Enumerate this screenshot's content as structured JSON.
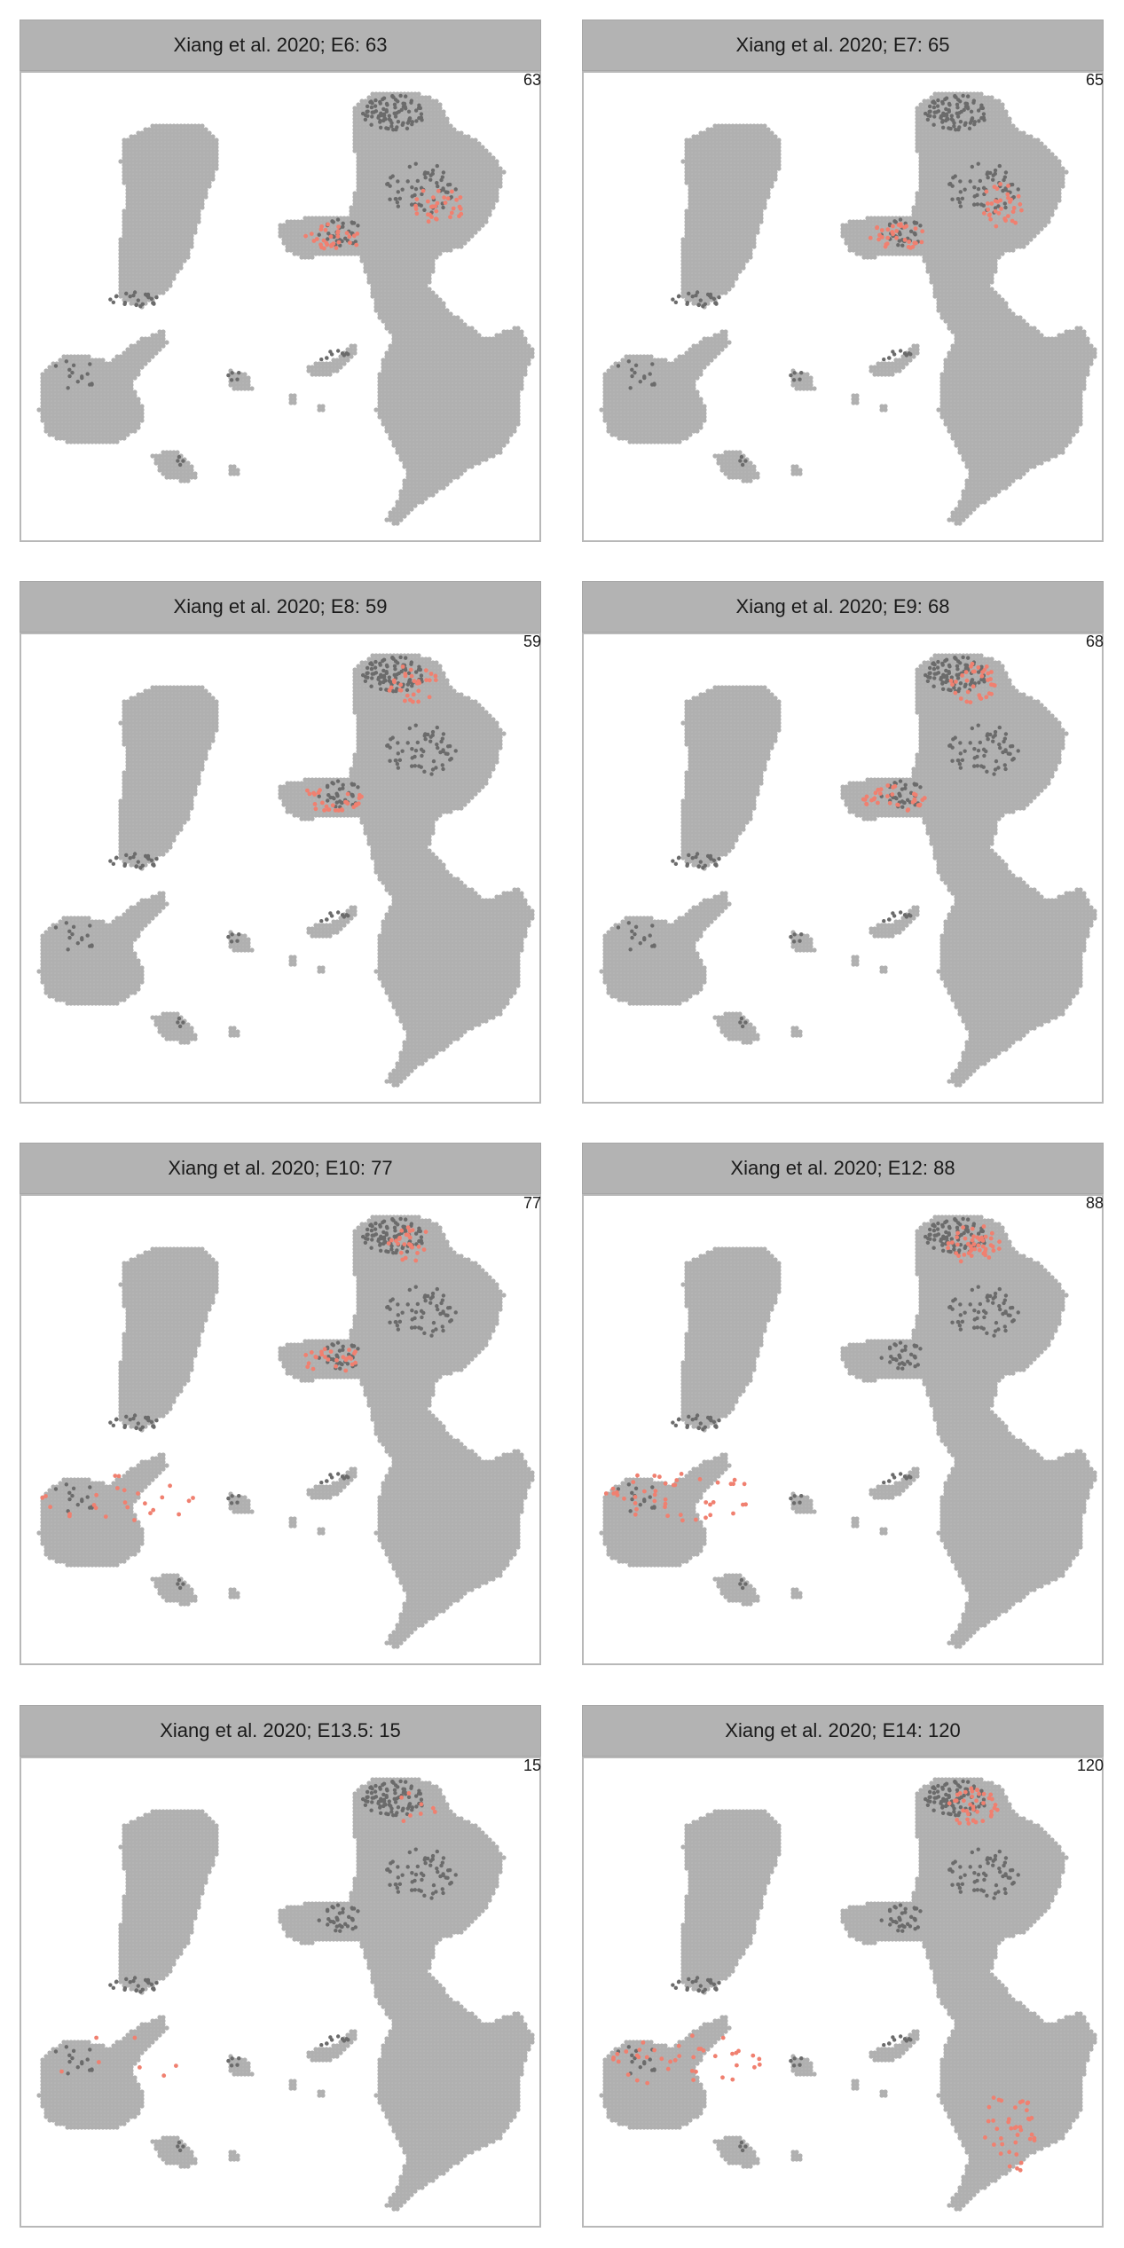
{
  "colors": {
    "background_cells": "#b0b0b0",
    "highlight_dark": "#6b6b6b",
    "highlight": "#f08070",
    "strip": "#b3b3b3"
  },
  "chart_data": [
    {
      "type": "scatter",
      "title": "Xiang et al. 2020; E6: 63",
      "count_label": "63",
      "n_highlight": 63,
      "hotspots": [
        "upper-right mid cluster",
        "center bridge"
      ]
    },
    {
      "type": "scatter",
      "title": "Xiang et al. 2020; E7: 65",
      "count_label": "65",
      "n_highlight": 65,
      "hotspots": [
        "upper-right mid cluster",
        "center bridge"
      ]
    },
    {
      "type": "scatter",
      "title": "Xiang et al. 2020; E8: 59",
      "count_label": "59",
      "n_highlight": 59,
      "hotspots": [
        "upper-right top cluster",
        "center bridge"
      ]
    },
    {
      "type": "scatter",
      "title": "Xiang et al. 2020; E9: 68",
      "count_label": "68",
      "n_highlight": 68,
      "hotspots": [
        "upper-right top cluster",
        "center bridge"
      ]
    },
    {
      "type": "scatter",
      "title": "Xiang et al. 2020; E10: 77",
      "count_label": "77",
      "n_highlight": 77,
      "hotspots": [
        "upper-right top cluster",
        "center bridge",
        "left cluster"
      ]
    },
    {
      "type": "scatter",
      "title": "Xiang et al. 2020; E12: 88",
      "count_label": "88",
      "n_highlight": 88,
      "hotspots": [
        "upper-right top cluster",
        "left cluster"
      ]
    },
    {
      "type": "scatter",
      "title": "Xiang et al. 2020; E13.5: 15",
      "count_label": "15",
      "n_highlight": 15,
      "hotspots": [
        "upper-right top cluster",
        "left cluster"
      ]
    },
    {
      "type": "scatter",
      "title": "Xiang et al. 2020; E14: 120",
      "count_label": "120",
      "n_highlight": 120,
      "hotspots": [
        "left cluster",
        "upper-right top cluster",
        "lower-right cluster"
      ]
    }
  ]
}
